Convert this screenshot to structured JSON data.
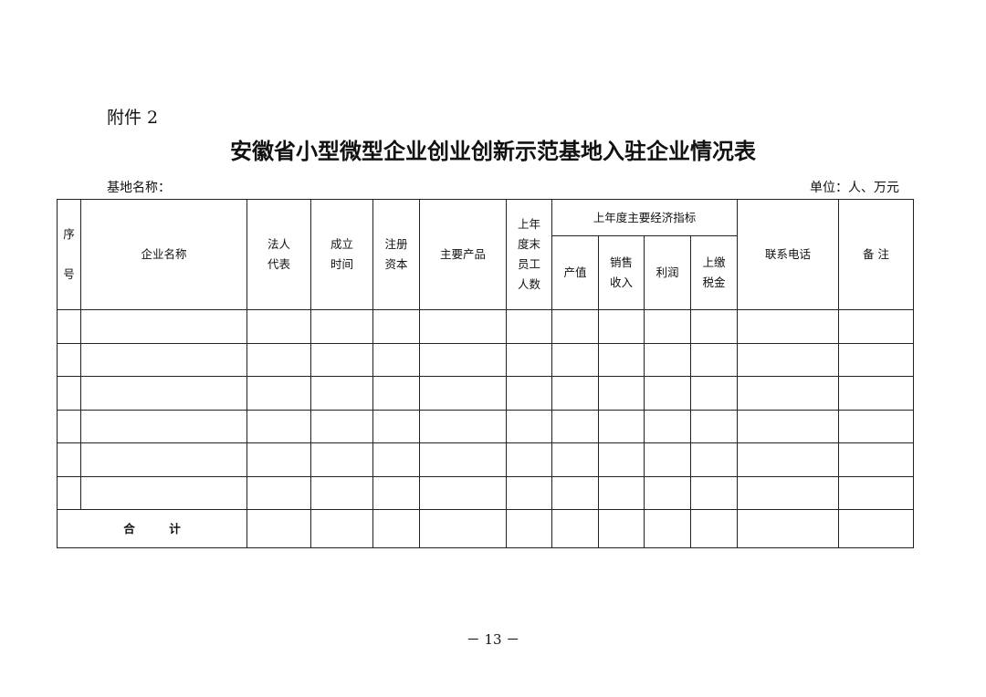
{
  "attachment_label": "附件 2",
  "title": "安徽省小型微型企业创业创新示范基地入驻企业情况表",
  "base_name_label": "基地名称：",
  "unit_label": "单位：人、万元",
  "table": {
    "headers": {
      "serial": "序\n\n号",
      "company_name": "企业名称",
      "legal_rep": "法人\n代表",
      "established": "成立\n时间",
      "registered_capital": "注册\n资本",
      "main_products": "主要产品",
      "employees": "上年\n度末\n员工\n人数",
      "econ_group": "上年度主要经济指标",
      "output_value": "产值",
      "sales_revenue": "销售\n收入",
      "profit": "利润",
      "taxes_paid": "上缴\n税金",
      "phone": "联系电话",
      "remarks": "备 注"
    },
    "empty_rows": 6,
    "total_label": "合　　　计"
  },
  "page_number": "－ 13 －"
}
